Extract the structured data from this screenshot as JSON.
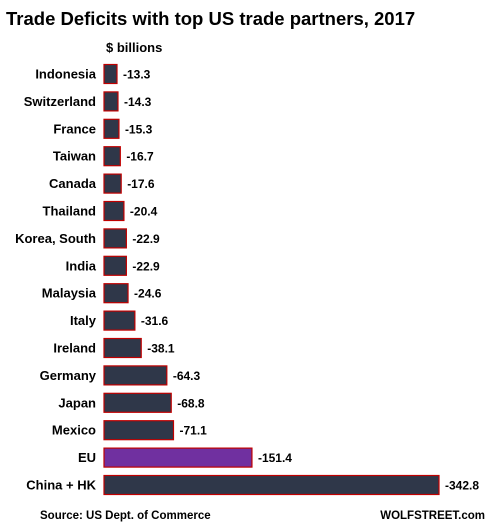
{
  "chart_data": {
    "type": "bar",
    "orientation": "horizontal",
    "title": "Trade Deficits with top US trade partners, 2017",
    "unit_label": "$ billions",
    "categories": [
      "Indonesia",
      "Switzerland",
      "France",
      "Taiwan",
      "Canada",
      "Thailand",
      "Korea, South",
      "India",
      "Malaysia",
      "Italy",
      "Ireland",
      "Germany",
      "Japan",
      "Mexico",
      "EU",
      "China + HK"
    ],
    "values": [
      -13.3,
      -14.3,
      -15.3,
      -16.7,
      -17.6,
      -20.4,
      -22.9,
      -22.9,
      -24.6,
      -31.6,
      -38.1,
      -64.3,
      -68.8,
      -71.1,
      -151.4,
      -342.8
    ],
    "value_labels": [
      "-13.3",
      "-14.3",
      "-15.3",
      "-16.7",
      "-17.6",
      "-20.4",
      "-22.9",
      "-22.9",
      "-24.6",
      "-31.6",
      "-38.1",
      "-64.3",
      "-68.8",
      "-71.1",
      "-151.4",
      "-342.8"
    ],
    "highlight_category": "EU",
    "colors": {
      "bar": "#2f3749",
      "highlight": "#7030a0",
      "bar_outline": "#c00000",
      "text": "#000000"
    },
    "grid": false,
    "legend": "none",
    "source": "Source: US Dept. of Commerce",
    "credit": "WOLFSTREET.com"
  }
}
